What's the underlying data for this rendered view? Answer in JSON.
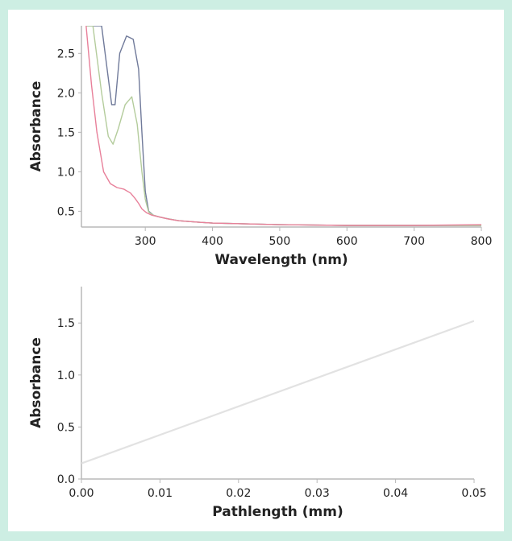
{
  "chart_data": [
    {
      "type": "line",
      "xlabel": "Wavelength (nm)",
      "ylabel": "Absorbance",
      "xlim": [
        205,
        800
      ],
      "ylim": [
        0.3,
        2.85
      ],
      "xticks": [
        300,
        400,
        500,
        600,
        700,
        800
      ],
      "yticks": [
        0.5,
        1.0,
        1.5,
        2.0,
        2.5
      ],
      "xtick_labels": [
        "300",
        "400",
        "500",
        "600",
        "700",
        "800"
      ],
      "ytick_labels": [
        "0.5",
        "1.0",
        "1.5",
        "2.0",
        "2.5"
      ],
      "series": [
        {
          "color": "#707a9a",
          "x": [
            212,
            220,
            235,
            250,
            255,
            262,
            272,
            282,
            290,
            295,
            300,
            305,
            312,
            320,
            330,
            350,
            380,
            400,
            450,
            500,
            600,
            700,
            800
          ],
          "values": [
            2.85,
            2.85,
            2.85,
            1.85,
            1.85,
            2.5,
            2.72,
            2.68,
            2.3,
            1.5,
            0.75,
            0.5,
            0.45,
            0.43,
            0.41,
            0.38,
            0.36,
            0.35,
            0.34,
            0.33,
            0.32,
            0.32,
            0.32
          ]
        },
        {
          "color": "#b4cc9c",
          "x": [
            212,
            222,
            235,
            245,
            252,
            260,
            270,
            280,
            288,
            295,
            300,
            305,
            312,
            320,
            330,
            350,
            380,
            400,
            450,
            500,
            600,
            700,
            800
          ],
          "values": [
            2.85,
            2.85,
            2.0,
            1.45,
            1.35,
            1.55,
            1.85,
            1.95,
            1.6,
            1.0,
            0.65,
            0.49,
            0.45,
            0.43,
            0.41,
            0.38,
            0.36,
            0.35,
            0.34,
            0.33,
            0.32,
            0.32,
            0.32
          ]
        },
        {
          "color": "#e8809a",
          "x": [
            212,
            220,
            228,
            238,
            248,
            258,
            268,
            278,
            285,
            290,
            295,
            302,
            310,
            320,
            335,
            350,
            380,
            400,
            450,
            500,
            600,
            700,
            800
          ],
          "values": [
            2.85,
            2.1,
            1.5,
            1.0,
            0.85,
            0.8,
            0.78,
            0.73,
            0.66,
            0.6,
            0.53,
            0.48,
            0.45,
            0.43,
            0.4,
            0.38,
            0.36,
            0.35,
            0.34,
            0.33,
            0.32,
            0.32,
            0.33
          ]
        }
      ]
    },
    {
      "type": "line",
      "xlabel": "Pathlength (mm)",
      "ylabel": "Absorbance",
      "xlim": [
        0,
        0.05
      ],
      "ylim": [
        0,
        1.85
      ],
      "xticks": [
        0,
        0.01,
        0.02,
        0.03,
        0.04,
        0.05
      ],
      "yticks": [
        0,
        0.5,
        1.0,
        1.5
      ],
      "xtick_labels": [
        "0.00",
        "0.01",
        "0.02",
        "0.03",
        "0.04",
        "0.05"
      ],
      "ytick_labels": [
        "0.0",
        "0.5",
        "1.0",
        "1.5"
      ],
      "series": [
        {
          "color": "#e2e2e2",
          "x": [
            0,
            0.05
          ],
          "values": [
            0.15,
            1.52
          ]
        }
      ]
    }
  ]
}
